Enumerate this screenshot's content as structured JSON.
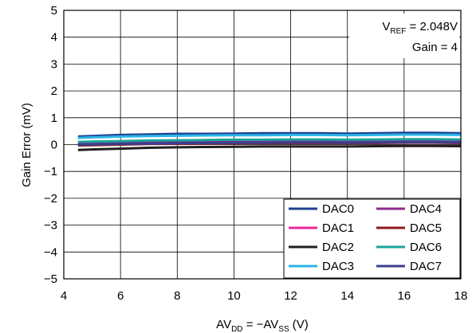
{
  "chart_data": {
    "type": "line",
    "xlabel": {
      "main": "AV",
      "sub1": "DD",
      "mid": " = −AV",
      "sub2": "SS",
      "tail": " (V)"
    },
    "ylabel": "Gain Error (mV)",
    "xlim": [
      4,
      18
    ],
    "ylim": [
      -5,
      5
    ],
    "x_ticks": [
      "4",
      "6",
      "8",
      "10",
      "12",
      "14",
      "16",
      "18"
    ],
    "y_ticks": [
      "−5",
      "−4",
      "−3",
      "−2",
      "−1",
      "0",
      "1",
      "2",
      "3",
      "4",
      "5"
    ],
    "grid": true,
    "annotation": {
      "vref_main": "V",
      "vref_sub": "REF",
      "vref_tail": " = 2.048V",
      "gain": "Gain = 4"
    },
    "legend_position": "bottom-right",
    "x": [
      4.5,
      5,
      6,
      7,
      8,
      9,
      10,
      11,
      12,
      13,
      14,
      15,
      16,
      17,
      18
    ],
    "series": [
      {
        "name": "DAC0",
        "color": "#1f3f8f",
        "values": [
          0.3,
          0.32,
          0.36,
          0.38,
          0.4,
          0.4,
          0.41,
          0.42,
          0.42,
          0.42,
          0.41,
          0.42,
          0.44,
          0.44,
          0.42
        ]
      },
      {
        "name": "DAC1",
        "color": "#e8289a",
        "values": [
          0.05,
          0.06,
          0.08,
          0.1,
          0.12,
          0.12,
          0.13,
          0.13,
          0.14,
          0.14,
          0.13,
          0.14,
          0.15,
          0.15,
          0.14
        ]
      },
      {
        "name": "DAC2",
        "color": "#231f20",
        "values": [
          -0.2,
          -0.18,
          -0.15,
          -0.12,
          -0.1,
          -0.09,
          -0.08,
          -0.07,
          -0.07,
          -0.07,
          -0.07,
          -0.06,
          -0.05,
          -0.05,
          -0.06
        ]
      },
      {
        "name": "DAC3",
        "color": "#2bb5e8",
        "values": [
          0.25,
          0.27,
          0.3,
          0.32,
          0.33,
          0.34,
          0.35,
          0.35,
          0.36,
          0.36,
          0.35,
          0.36,
          0.37,
          0.37,
          0.36
        ]
      },
      {
        "name": "DAC4",
        "color": "#8e2a8c",
        "values": [
          0.02,
          0.03,
          0.05,
          0.07,
          0.08,
          0.09,
          0.1,
          0.1,
          0.11,
          0.11,
          0.1,
          0.11,
          0.12,
          0.12,
          0.11
        ]
      },
      {
        "name": "DAC5",
        "color": "#8b1a1a",
        "values": [
          -0.03,
          -0.02,
          0.0,
          0.02,
          0.03,
          0.04,
          0.05,
          0.05,
          0.06,
          0.06,
          0.05,
          0.06,
          0.07,
          0.07,
          0.06
        ]
      },
      {
        "name": "DAC6",
        "color": "#1aa39a",
        "values": [
          0.1,
          0.11,
          0.13,
          0.15,
          0.16,
          0.17,
          0.18,
          0.18,
          0.19,
          0.19,
          0.18,
          0.19,
          0.2,
          0.2,
          0.19
        ]
      },
      {
        "name": "DAC7",
        "color": "#3a3f8f",
        "values": [
          0.0,
          0.01,
          0.03,
          0.04,
          0.05,
          0.06,
          0.07,
          0.07,
          0.08,
          0.08,
          0.07,
          0.08,
          0.09,
          0.09,
          0.08
        ]
      }
    ]
  }
}
